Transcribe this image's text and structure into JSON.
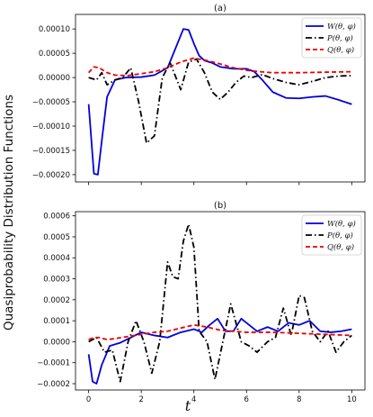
{
  "figure": {
    "ylabel": "Quasiprobability Distribution Functions",
    "xlabel": "t"
  },
  "chart_data": [
    {
      "type": "line",
      "title": "(a)",
      "xlim": [
        -0.5,
        10.5
      ],
      "ylim": [
        -0.000215,
        0.00013
      ],
      "xticks": [
        0,
        2,
        4,
        6,
        8,
        10
      ],
      "xticklabels": [],
      "yticks": [
        -0.0002,
        -0.00015,
        -0.0001,
        -5e-05,
        0.0,
        5e-05,
        0.0001
      ],
      "yticklabels": [
        "−0.00020",
        "−0.00015",
        "−0.00010",
        "−0.00005",
        "0.00000",
        "0.00005",
        "0.00010"
      ],
      "grid": false,
      "legend": "top-right",
      "series": [
        {
          "name": "W(θ, φ)",
          "color": "#0000dd",
          "style": "solid",
          "x": [
            0,
            0.2,
            0.35,
            0.5,
            0.7,
            1.0,
            1.4,
            2.0,
            2.5,
            3.0,
            3.3,
            3.6,
            3.8,
            4.0,
            4.2,
            4.4,
            4.7,
            5.0,
            5.5,
            6.0,
            6.3,
            6.6,
            7.0,
            7.5,
            8.0,
            8.5,
            9.0,
            9.5,
            10.0
          ],
          "y": [
            -5.5e-05,
            -0.000198,
            -0.0002,
            -0.00013,
            -4e-05,
            -5e-06,
            0.0,
            1e-06,
            5e-06,
            2e-05,
            6e-05,
            0.0001,
            9.8e-05,
            7e-05,
            4.5e-05,
            3.5e-05,
            3e-05,
            2.2e-05,
            1.8e-05,
            1.8e-05,
            1.2e-05,
            -5e-06,
            -3e-05,
            -4.2e-05,
            -4.3e-05,
            -4e-05,
            -3.8e-05,
            -4.6e-05,
            -5.5e-05
          ]
        },
        {
          "name": "P(θ, φ)",
          "color": "#000000",
          "style": "dashdot",
          "x": [
            0,
            0.3,
            0.5,
            0.7,
            1.0,
            1.3,
            1.6,
            1.9,
            2.2,
            2.5,
            2.8,
            3.1,
            3.5,
            3.8,
            4.1,
            4.4,
            4.7,
            5.0,
            5.3,
            5.6,
            5.9,
            6.2,
            6.6,
            7.0,
            7.5,
            8.0,
            8.5,
            9.0,
            9.5,
            10.0
          ],
          "y": [
            0.0,
            -5e-06,
            1e-05,
            -1.5e-05,
            -5e-06,
            0.0,
            2e-05,
            -5e-05,
            -0.000135,
            -0.00012,
            0.0,
            3e-05,
            -2.5e-05,
            3.2e-05,
            3.8e-05,
            1e-05,
            -3e-05,
            -4.5e-05,
            -3e-05,
            -1e-05,
            3e-06,
            0.0,
            6e-06,
            -2e-06,
            -1e-05,
            -1.5e-05,
            -8e-06,
            0.0,
            3e-06,
            4e-06
          ]
        },
        {
          "name": "Q(θ, φ)",
          "color": "#ee0000",
          "style": "dashed",
          "x": [
            0,
            0.2,
            0.4,
            0.7,
            1.0,
            1.5,
            2.0,
            2.5,
            3.0,
            3.5,
            4.0,
            4.5,
            5.0,
            5.5,
            6.0,
            6.5,
            7.0,
            8.0,
            9.0,
            10.0
          ],
          "y": [
            1e-05,
            2.2e-05,
            2e-05,
            1e-05,
            5e-06,
            4e-06,
            8e-06,
            1.2e-05,
            2e-05,
            3.2e-05,
            4e-05,
            3.5e-05,
            2.8e-05,
            2e-05,
            1.5e-05,
            1.2e-05,
            1e-05,
            1e-05,
            1.1e-05,
            1.2e-05
          ]
        }
      ]
    },
    {
      "type": "line",
      "title": "(b)",
      "xlim": [
        -0.5,
        10.5
      ],
      "ylim": [
        -0.00023,
        0.00062
      ],
      "xticks": [
        0,
        2,
        4,
        6,
        8,
        10
      ],
      "xticklabels": [
        "0",
        "2",
        "4",
        "6",
        "8",
        "10"
      ],
      "yticks": [
        -0.0002,
        -0.0001,
        0.0,
        0.0001,
        0.0002,
        0.0003,
        0.0004,
        0.0005,
        0.0006
      ],
      "yticklabels": [
        "−0.0002",
        "−0.0001",
        "0.0000",
        "0.0001",
        "0.0002",
        "0.0003",
        "0.0004",
        "0.0005",
        "0.0006"
      ],
      "grid": false,
      "legend": "top-right",
      "series": [
        {
          "name": "W(θ, φ)",
          "color": "#0000dd",
          "style": "solid",
          "x": [
            0,
            0.15,
            0.3,
            0.5,
            0.8,
            1.2,
            1.6,
            2.0,
            2.5,
            3.0,
            3.5,
            4.0,
            4.3,
            4.6,
            4.9,
            5.2,
            5.5,
            5.8,
            6.1,
            6.4,
            6.8,
            7.2,
            7.6,
            8.0,
            8.4,
            8.8,
            9.2,
            9.6,
            10.0
          ],
          "y": [
            -6e-05,
            -0.00019,
            -0.0002,
            -0.00011,
            -2e-05,
            -5e-06,
            2e-05,
            4.5e-05,
            3e-05,
            2e-05,
            4.5e-05,
            6e-05,
            4.5e-05,
            8e-05,
            0.00011,
            5e-05,
            5e-05,
            0.00011,
            8e-05,
            5e-05,
            7e-05,
            5e-05,
            9e-05,
            8e-05,
            0.0001,
            5e-05,
            4.5e-05,
            5e-05,
            6e-05
          ]
        },
        {
          "name": "P(θ, φ)",
          "color": "#000000",
          "style": "dashdot",
          "x": [
            0,
            0.3,
            0.6,
            0.9,
            1.2,
            1.5,
            1.8,
            2.1,
            2.4,
            2.7,
            3.0,
            3.2,
            3.4,
            3.6,
            3.8,
            4.0,
            4.2,
            4.5,
            4.8,
            5.1,
            5.4,
            5.8,
            6.1,
            6.4,
            6.8,
            7.1,
            7.4,
            7.7,
            8.0,
            8.2,
            8.5,
            8.8,
            9.1,
            9.4,
            9.7,
            10.0
          ],
          "y": [
            0.0,
            2e-05,
            -5e-05,
            -4e-05,
            -0.00019,
            0.0,
            0.0001,
            0.0,
            -0.00015,
            0.0,
            0.00038,
            0.00031,
            0.0003,
            0.00048,
            0.00056,
            0.00045,
            5e-05,
            0.0,
            -0.00018,
            0.0,
            0.00018,
            0.0,
            -2e-05,
            -5e-05,
            0.0,
            2e-05,
            0.00016,
            3e-05,
            0.00022,
            0.00021,
            5e-05,
            0.0,
            5e-05,
            -5e-05,
            0.0,
            3e-05
          ]
        },
        {
          "name": "Q(θ, φ)",
          "color": "#ee0000",
          "style": "dashed",
          "x": [
            0,
            0.2,
            0.4,
            0.7,
            1.0,
            1.5,
            2.0,
            2.5,
            3.0,
            3.5,
            4.0,
            4.5,
            5.0,
            5.5,
            6.0,
            7.0,
            8.0,
            9.0,
            10.0
          ],
          "y": [
            1e-05,
            2e-05,
            2e-05,
            1e-05,
            1.5e-05,
            2.5e-05,
            3.5e-05,
            4.5e-05,
            5e-05,
            6.5e-05,
            8e-05,
            7e-05,
            5.5e-05,
            5e-05,
            4.5e-05,
            4.5e-05,
            4e-05,
            3.5e-05,
            3e-05
          ]
        }
      ]
    }
  ]
}
